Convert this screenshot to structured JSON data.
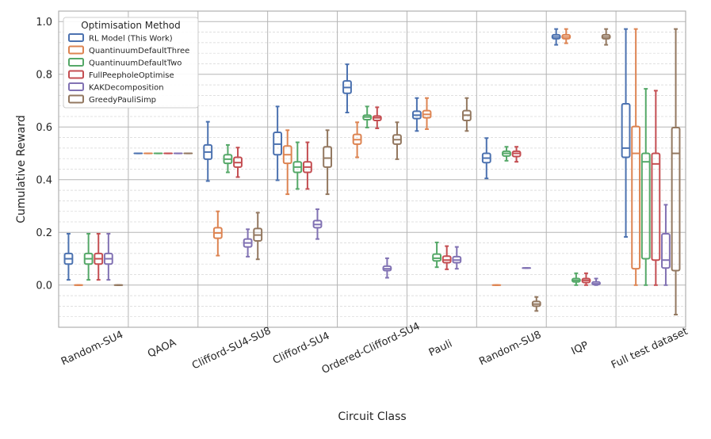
{
  "chart_data": {
    "type": "box",
    "title": "",
    "xlabel": "Circuit Class",
    "ylabel": "Cumulative Reward",
    "ylim": [
      -0.16,
      1.04
    ],
    "yticks": [
      0.0,
      0.2,
      0.4,
      0.6,
      0.8,
      1.0
    ],
    "ytick_labels": [
      "0.0",
      "0.2",
      "0.4",
      "0.6",
      "0.8",
      "1.0"
    ],
    "minor_grid_step": 0.04,
    "categories": [
      "Random-SU4",
      "QAOA",
      "Clifford-SU4-SU8",
      "Clifford-SU4",
      "Ordered-Clifford-SU4",
      "Pauli",
      "Random-SU8",
      "IQP",
      "Full test dataset"
    ],
    "legend_title": "Optimisation Method",
    "legend_position": "top-left",
    "series": [
      {
        "name": "RL Model (This Work)",
        "color": "#4c72b0",
        "boxes": [
          {
            "whislo": 0.02,
            "q1": 0.08,
            "med": 0.1,
            "q3": 0.12,
            "whishi": 0.195
          },
          {
            "whislo": 0.5,
            "q1": 0.5,
            "med": 0.5,
            "q3": 0.5,
            "whishi": 0.5
          },
          {
            "whislo": 0.395,
            "q1": 0.478,
            "med": 0.505,
            "q3": 0.532,
            "whishi": 0.62
          },
          {
            "whislo": 0.398,
            "q1": 0.495,
            "med": 0.535,
            "q3": 0.58,
            "whishi": 0.678
          },
          {
            "whislo": 0.655,
            "q1": 0.728,
            "med": 0.75,
            "q3": 0.775,
            "whishi": 0.838
          },
          {
            "whislo": 0.585,
            "q1": 0.632,
            "med": 0.645,
            "q3": 0.66,
            "whishi": 0.71
          },
          {
            "whislo": 0.405,
            "q1": 0.465,
            "med": 0.482,
            "q3": 0.5,
            "whishi": 0.558
          },
          {
            "whislo": 0.912,
            "q1": 0.935,
            "med": 0.942,
            "q3": 0.95,
            "whishi": 0.972
          },
          {
            "whislo": 0.183,
            "q1": 0.485,
            "med": 0.52,
            "q3": 0.688,
            "whishi": 0.972
          }
        ]
      },
      {
        "name": "QuantinuumDefaultThree",
        "color": "#dd8452",
        "boxes": [
          {
            "whislo": 0.0,
            "q1": 0.0,
            "med": 0.0,
            "q3": 0.0,
            "whishi": 0.0
          },
          {
            "whislo": 0.5,
            "q1": 0.5,
            "med": 0.5,
            "q3": 0.5,
            "whishi": 0.5
          },
          {
            "whislo": 0.112,
            "q1": 0.178,
            "med": 0.198,
            "q3": 0.218,
            "whishi": 0.28
          },
          {
            "whislo": 0.345,
            "q1": 0.462,
            "med": 0.495,
            "q3": 0.528,
            "whishi": 0.588
          },
          {
            "whislo": 0.485,
            "q1": 0.535,
            "med": 0.552,
            "q3": 0.572,
            "whishi": 0.618
          },
          {
            "whislo": 0.592,
            "q1": 0.635,
            "med": 0.648,
            "q3": 0.662,
            "whishi": 0.71
          },
          {
            "whislo": 0.0,
            "q1": 0.0,
            "med": 0.0,
            "q3": 0.0,
            "whishi": 0.0
          },
          {
            "whislo": 0.918,
            "q1": 0.935,
            "med": 0.942,
            "q3": 0.95,
            "whishi": 0.972
          },
          {
            "whislo": 0.0,
            "q1": 0.062,
            "med": 0.5,
            "q3": 0.602,
            "whishi": 0.972
          }
        ]
      },
      {
        "name": "QuantinuumDefaultTwo",
        "color": "#55a868",
        "boxes": [
          {
            "whislo": 0.02,
            "q1": 0.08,
            "med": 0.1,
            "q3": 0.12,
            "whishi": 0.195
          },
          {
            "whislo": 0.5,
            "q1": 0.5,
            "med": 0.5,
            "q3": 0.5,
            "whishi": 0.5
          },
          {
            "whislo": 0.428,
            "q1": 0.462,
            "med": 0.478,
            "q3": 0.495,
            "whishi": 0.532
          },
          {
            "whislo": 0.365,
            "q1": 0.428,
            "med": 0.448,
            "q3": 0.468,
            "whishi": 0.542
          },
          {
            "whislo": 0.598,
            "q1": 0.628,
            "med": 0.638,
            "q3": 0.645,
            "whishi": 0.678
          },
          {
            "whislo": 0.068,
            "q1": 0.092,
            "med": 0.102,
            "q3": 0.118,
            "whishi": 0.162
          },
          {
            "whislo": 0.472,
            "q1": 0.49,
            "med": 0.5,
            "q3": 0.508,
            "whishi": 0.525
          },
          {
            "whislo": 0.0,
            "q1": 0.012,
            "med": 0.018,
            "q3": 0.025,
            "whishi": 0.045
          },
          {
            "whislo": 0.0,
            "q1": 0.1,
            "med": 0.468,
            "q3": 0.5,
            "whishi": 0.745
          }
        ]
      },
      {
        "name": "FullPeepholeOptimise",
        "color": "#c44e52",
        "boxes": [
          {
            "whislo": 0.02,
            "q1": 0.08,
            "med": 0.1,
            "q3": 0.12,
            "whishi": 0.195
          },
          {
            "whislo": 0.5,
            "q1": 0.5,
            "med": 0.5,
            "q3": 0.5,
            "whishi": 0.5
          },
          {
            "whislo": 0.41,
            "q1": 0.448,
            "med": 0.465,
            "q3": 0.485,
            "whishi": 0.522
          },
          {
            "whislo": 0.365,
            "q1": 0.428,
            "med": 0.448,
            "q3": 0.468,
            "whishi": 0.542
          },
          {
            "whislo": 0.595,
            "q1": 0.625,
            "med": 0.635,
            "q3": 0.642,
            "whishi": 0.675
          },
          {
            "whislo": 0.06,
            "q1": 0.085,
            "med": 0.095,
            "q3": 0.11,
            "whishi": 0.148
          },
          {
            "whislo": 0.468,
            "q1": 0.488,
            "med": 0.5,
            "q3": 0.508,
            "whishi": 0.525
          },
          {
            "whislo": 0.0,
            "q1": 0.01,
            "med": 0.018,
            "q3": 0.025,
            "whishi": 0.045
          },
          {
            "whislo": 0.0,
            "q1": 0.095,
            "med": 0.46,
            "q3": 0.5,
            "whishi": 0.738
          }
        ]
      },
      {
        "name": "KAKDecomposition",
        "color": "#8172b3",
        "boxes": [
          {
            "whislo": 0.02,
            "q1": 0.08,
            "med": 0.1,
            "q3": 0.12,
            "whishi": 0.195
          },
          {
            "whislo": 0.5,
            "q1": 0.5,
            "med": 0.5,
            "q3": 0.5,
            "whishi": 0.5
          },
          {
            "whislo": 0.108,
            "q1": 0.145,
            "med": 0.16,
            "q3": 0.175,
            "whishi": 0.212
          },
          {
            "whislo": 0.175,
            "q1": 0.218,
            "med": 0.23,
            "q3": 0.245,
            "whishi": 0.288
          },
          {
            "whislo": 0.028,
            "q1": 0.055,
            "med": 0.062,
            "q3": 0.072,
            "whishi": 0.102
          },
          {
            "whislo": 0.062,
            "q1": 0.085,
            "med": 0.095,
            "q3": 0.108,
            "whishi": 0.145
          },
          {
            "whislo": 0.065,
            "q1": 0.065,
            "med": 0.065,
            "q3": 0.065,
            "whishi": 0.065
          },
          {
            "whislo": 0.0,
            "q1": 0.002,
            "med": 0.005,
            "q3": 0.012,
            "whishi": 0.025
          },
          {
            "whislo": 0.0,
            "q1": 0.065,
            "med": 0.095,
            "q3": 0.195,
            "whishi": 0.305
          }
        ]
      },
      {
        "name": "GreedyPauliSimp",
        "color": "#937860",
        "boxes": [
          {
            "whislo": 0.0,
            "q1": 0.0,
            "med": 0.0,
            "q3": 0.0,
            "whishi": 0.0
          },
          {
            "whislo": 0.5,
            "q1": 0.5,
            "med": 0.5,
            "q3": 0.5,
            "whishi": 0.5
          },
          {
            "whislo": 0.098,
            "q1": 0.168,
            "med": 0.19,
            "q3": 0.215,
            "whishi": 0.275
          },
          {
            "whislo": 0.345,
            "q1": 0.448,
            "med": 0.482,
            "q3": 0.525,
            "whishi": 0.588
          },
          {
            "whislo": 0.478,
            "q1": 0.535,
            "med": 0.552,
            "q3": 0.57,
            "whishi": 0.618
          },
          {
            "whislo": 0.585,
            "q1": 0.625,
            "med": 0.645,
            "q3": 0.662,
            "whishi": 0.71
          },
          {
            "whislo": -0.098,
            "q1": -0.08,
            "med": -0.072,
            "q3": -0.062,
            "whishi": -0.045
          },
          {
            "whislo": 0.912,
            "q1": 0.935,
            "med": 0.942,
            "q3": 0.95,
            "whishi": 0.972
          },
          {
            "whislo": -0.112,
            "q1": 0.055,
            "med": 0.5,
            "q3": 0.598,
            "whishi": 0.972
          }
        ]
      }
    ]
  }
}
